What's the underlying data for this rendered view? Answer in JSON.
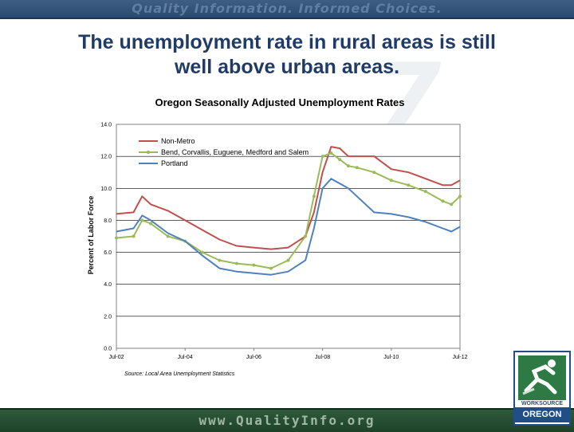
{
  "header": {
    "tagline": "Quality Information. Informed Choices."
  },
  "slide": {
    "title_line1": "The unemployment rate in rural areas is still",
    "title_line2": "well above urban areas."
  },
  "footer": {
    "url": "www.QualityInfo.org"
  },
  "logo": {
    "line1": "WORKSOURCE",
    "line2": "OREGON",
    "colors": {
      "green": "#2e7a45",
      "blue": "#1f4f86"
    }
  },
  "chart_data": {
    "type": "line",
    "title": "Oregon Seasonally Adjusted Unemployment Rates",
    "ylabel": "Percent of Labor Force",
    "xlabel": "",
    "source": "Source: Local Area Unemployment Statistics",
    "ylim": [
      0,
      14
    ],
    "y_ticks": [
      "0.0",
      "2.0",
      "4.0",
      "6.0",
      "8.0",
      "10.0",
      "12.0",
      "14.0"
    ],
    "x_tick_labels": [
      "Jul-02",
      "Jul-04",
      "Jul-06",
      "Jul-08",
      "Jul-10",
      "Jul-12"
    ],
    "x_range": [
      "2002-07",
      "2012-07"
    ],
    "grid": "horizontal",
    "legend_position": "top-left",
    "x": [
      "2002-07",
      "2003-01",
      "2003-04",
      "2003-07",
      "2004-01",
      "2004-07",
      "2005-01",
      "2005-07",
      "2006-01",
      "2006-07",
      "2007-01",
      "2007-07",
      "2008-01",
      "2008-04",
      "2008-07",
      "2008-10",
      "2009-01",
      "2009-04",
      "2009-07",
      "2010-01",
      "2010-07",
      "2011-01",
      "2011-07",
      "2012-01",
      "2012-04",
      "2012-07"
    ],
    "series": [
      {
        "name": "Non-Metro",
        "color": "#c0504d",
        "values": [
          8.4,
          8.5,
          9.5,
          9.0,
          8.6,
          8.0,
          7.4,
          6.8,
          6.4,
          6.3,
          6.2,
          6.3,
          7.0,
          8.5,
          11.0,
          12.6,
          12.5,
          12.0,
          12.0,
          12.0,
          11.2,
          11.0,
          10.6,
          10.2,
          10.2,
          10.5
        ]
      },
      {
        "name": "Bend, Corvallis, Euguene, Medford and Salem",
        "color": "#9bbb59",
        "marker": "circle",
        "values": [
          6.9,
          7.0,
          8.0,
          7.8,
          7.0,
          6.7,
          6.0,
          5.5,
          5.3,
          5.2,
          5.0,
          5.5,
          7.0,
          9.5,
          12.0,
          12.2,
          11.8,
          11.4,
          11.3,
          11.0,
          10.5,
          10.2,
          9.8,
          9.2,
          9.0,
          9.5
        ]
      },
      {
        "name": "Portland",
        "color": "#4f81bd",
        "values": [
          7.3,
          7.5,
          8.3,
          8.0,
          7.2,
          6.7,
          5.8,
          5.0,
          4.8,
          4.7,
          4.6,
          4.8,
          5.5,
          7.5,
          10.0,
          10.6,
          10.3,
          10.0,
          9.5,
          8.5,
          8.4,
          8.2,
          7.9,
          7.5,
          7.3,
          7.6
        ]
      }
    ]
  }
}
